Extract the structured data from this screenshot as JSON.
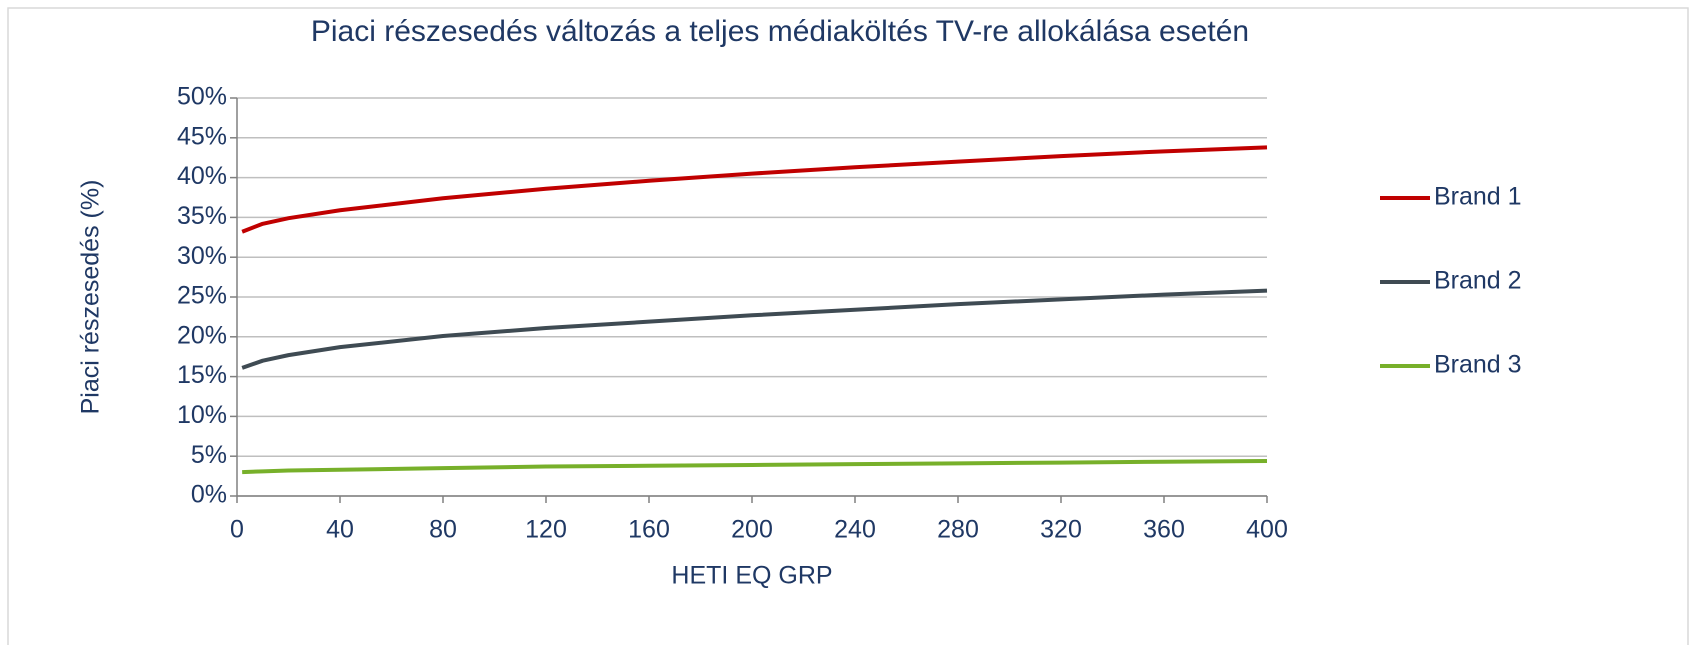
{
  "chart_data": {
    "type": "line",
    "title": "Piaci részesedés változás a teljes médiaköltés TV-re allokálása esetén",
    "xlabel": "HETI EQ GRP",
    "ylabel": "Piaci részesedés (%)",
    "x": [
      2,
      10,
      20,
      40,
      80,
      120,
      160,
      200,
      240,
      280,
      320,
      360,
      400
    ],
    "series": [
      {
        "name": "Brand 1",
        "color": "#c00000",
        "values": [
          33.2,
          34.2,
          34.9,
          35.9,
          37.4,
          38.6,
          39.6,
          40.5,
          41.3,
          42.0,
          42.7,
          43.3,
          43.8
        ]
      },
      {
        "name": "Brand 2",
        "color": "#3f4b53",
        "values": [
          16.1,
          17.0,
          17.7,
          18.7,
          20.1,
          21.1,
          21.9,
          22.7,
          23.4,
          24.1,
          24.7,
          25.3,
          25.8
        ]
      },
      {
        "name": "Brand 3",
        "color": "#77b02a",
        "values": [
          3.0,
          3.1,
          3.2,
          3.3,
          3.5,
          3.7,
          3.8,
          3.9,
          4.0,
          4.1,
          4.2,
          4.3,
          4.4
        ]
      }
    ],
    "xlim": [
      0,
      400
    ],
    "xticks": [
      0,
      40,
      80,
      120,
      160,
      200,
      240,
      280,
      320,
      360,
      400
    ],
    "ylim": [
      0,
      50
    ],
    "yticks": [
      {
        "value": 0,
        "label": "0%"
      },
      {
        "value": 5,
        "label": "5%"
      },
      {
        "value": 10,
        "label": "10%"
      },
      {
        "value": 15,
        "label": "15%"
      },
      {
        "value": 20,
        "label": "20%"
      },
      {
        "value": 25,
        "label": "25%"
      },
      {
        "value": 30,
        "label": "30%"
      },
      {
        "value": 35,
        "label": "35%"
      },
      {
        "value": 40,
        "label": "40%"
      },
      {
        "value": 45,
        "label": "45%"
      },
      {
        "value": 50,
        "label": "50%"
      }
    ],
    "grid": true,
    "legend": "right"
  }
}
